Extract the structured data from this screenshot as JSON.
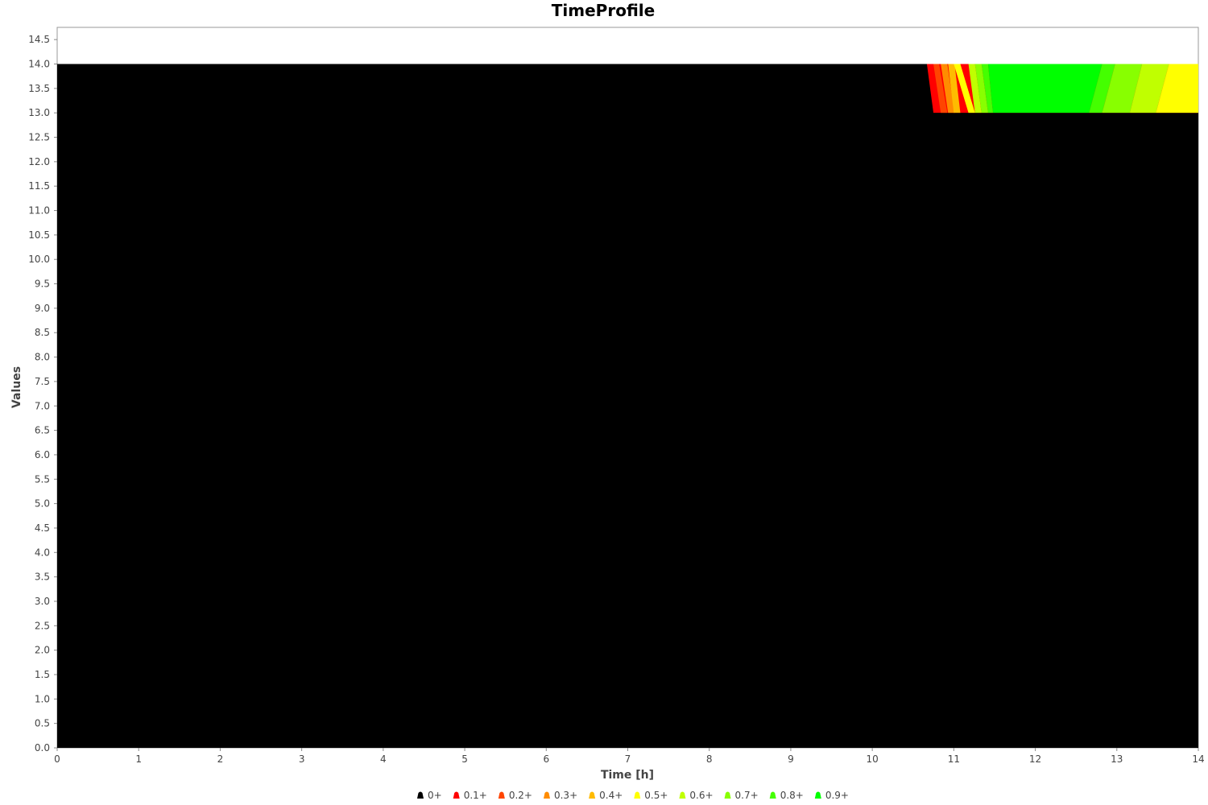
{
  "chart_data": {
    "type": "area",
    "title": "TimeProfile",
    "xlabel": "Time [h]",
    "ylabel": "Values",
    "xlim": [
      0,
      14
    ],
    "ylim": [
      0,
      14.75
    ],
    "x_ticks": [
      0,
      1,
      2,
      3,
      4,
      5,
      6,
      7,
      8,
      9,
      10,
      11,
      12,
      13,
      14
    ],
    "x_tick_labels": [
      "0",
      "1",
      "2",
      "3",
      "4",
      "5",
      "6",
      "7",
      "8",
      "9",
      "10",
      "11",
      "12",
      "13",
      "14"
    ],
    "y_ticks": [
      0.0,
      0.5,
      1.0,
      1.5,
      2.0,
      2.5,
      3.0,
      3.5,
      4.0,
      4.5,
      5.0,
      5.5,
      6.0,
      6.5,
      7.0,
      7.5,
      8.0,
      8.5,
      9.0,
      9.5,
      10.0,
      10.5,
      11.0,
      11.5,
      12.0,
      12.5,
      13.0,
      13.5,
      14.0,
      14.5
    ],
    "y_tick_labels": [
      "0.0",
      "0.5",
      "1.0",
      "1.5",
      "2.0",
      "2.5",
      "3.0",
      "3.5",
      "4.0",
      "4.5",
      "5.0",
      "5.5",
      "6.0",
      "6.5",
      "7.0",
      "7.5",
      "8.0",
      "8.5",
      "9.0",
      "9.5",
      "10.0",
      "10.5",
      "11.0",
      "11.5",
      "12.0",
      "12.5",
      "13.0",
      "13.5",
      "14.0",
      "14.5"
    ],
    "legend_position": "bottom",
    "base_series": {
      "name": "0+",
      "color": "#000000",
      "polygon": [
        [
          0,
          0
        ],
        [
          0,
          14
        ],
        [
          14,
          14
        ],
        [
          14,
          0
        ]
      ]
    },
    "band_y": [
      13,
      14
    ],
    "series": [
      {
        "name": "0.1+",
        "color": "#ff0000",
        "bands": [
          [
            10.67,
            10.75,
            13.99,
            13.99
          ],
          [
            13.9,
            13.9,
            14.0,
            14.0
          ]
        ]
      },
      {
        "name": "0.2+",
        "color": "#ff4500",
        "bands": [
          [
            10.75,
            10.84,
            10.82,
            10.92
          ]
        ]
      },
      {
        "name": "0.3+",
        "color": "#ff8c00",
        "bands": [
          [
            10.84,
            10.93,
            10.92,
            11.01
          ]
        ]
      },
      {
        "name": "0.4+",
        "color": "#ffbb00",
        "bands": [
          [
            10.93,
            11.0,
            11.01,
            11.08
          ]
        ]
      },
      {
        "name": "0.5+",
        "color": "#ffff00",
        "bands": [
          [
            11.0,
            11.18,
            11.08,
            11.26
          ],
          [
            13.64,
            13.48,
            14.0,
            14.0
          ]
        ]
      },
      {
        "name": "0.6+",
        "color": "#c0ff00",
        "bands": [
          [
            11.18,
            11.26,
            11.26,
            11.34
          ],
          [
            13.31,
            13.16,
            13.64,
            13.48
          ]
        ]
      },
      {
        "name": "0.7+",
        "color": "#88ff00",
        "bands": [
          [
            11.26,
            11.34,
            11.34,
            11.42
          ],
          [
            12.98,
            12.82,
            13.31,
            13.16
          ]
        ]
      },
      {
        "name": "0.8+",
        "color": "#44ff00",
        "bands": [
          [
            11.34,
            11.42,
            11.42,
            11.48
          ],
          [
            12.82,
            12.66,
            12.98,
            12.82
          ]
        ]
      },
      {
        "name": "0.9+",
        "color": "#00ff00",
        "bands": [
          [
            11.42,
            11.48,
            12.82,
            12.66
          ]
        ]
      }
    ]
  }
}
